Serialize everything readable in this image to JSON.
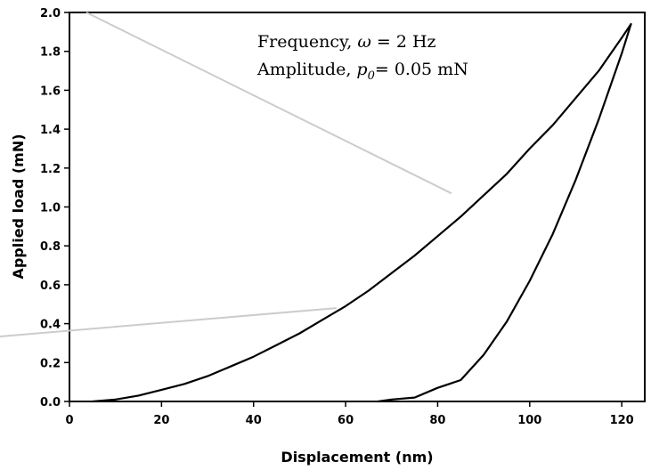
{
  "chart_data": {
    "type": "line",
    "title": "",
    "xlabel": "Displacement (nm)",
    "ylabel": "Applied load (mN)",
    "xlim": [
      0,
      125
    ],
    "ylim": [
      0,
      2.0
    ],
    "x_ticks": [
      0,
      20,
      40,
      60,
      80,
      100,
      120
    ],
    "y_ticks": [
      0.0,
      0.2,
      0.4,
      0.6,
      0.8,
      1.0,
      1.2,
      1.4,
      1.6,
      1.8,
      2.0
    ],
    "x_tick_labels": [
      "0",
      "20",
      "40",
      "60",
      "80",
      "100",
      "120"
    ],
    "y_tick_labels": [
      "0.0",
      "0.2",
      "0.4",
      "0.6",
      "0.8",
      "1.0",
      "1.2",
      "1.4",
      "1.6",
      "1.8",
      "2.0"
    ],
    "grid": false,
    "legend": "none",
    "line_color": "#000000",
    "annotations": [
      {
        "prefix": "Frequency, ",
        "symbol": "ω",
        "suffix": " = 2 Hz"
      },
      {
        "prefix": "Amplitude, ",
        "symbol": "p",
        "subscript": "0",
        "suffix": "= 0.05 mN"
      }
    ],
    "series": [
      {
        "x": [
          5,
          10,
          15,
          20,
          25,
          30,
          35,
          40,
          45,
          50,
          55,
          60,
          65,
          70,
          75,
          80,
          85,
          90,
          95,
          100,
          105,
          110,
          115,
          120,
          122
        ],
        "y": [
          0.0,
          0.01,
          0.03,
          0.06,
          0.09,
          0.13,
          0.18,
          0.23,
          0.29,
          0.35,
          0.42,
          0.49,
          0.57,
          0.66,
          0.75,
          0.85,
          0.95,
          1.06,
          1.17,
          1.3,
          1.42,
          1.56,
          1.7,
          1.87,
          1.94
        ]
      },
      {
        "x": [
          122,
          120,
          115,
          110,
          105,
          100,
          95,
          90,
          85,
          80,
          75,
          70,
          67
        ],
        "y": [
          1.94,
          1.79,
          1.45,
          1.14,
          0.86,
          0.62,
          0.41,
          0.24,
          0.11,
          0.07,
          0.02,
          0.01,
          0.0
        ]
      }
    ]
  }
}
